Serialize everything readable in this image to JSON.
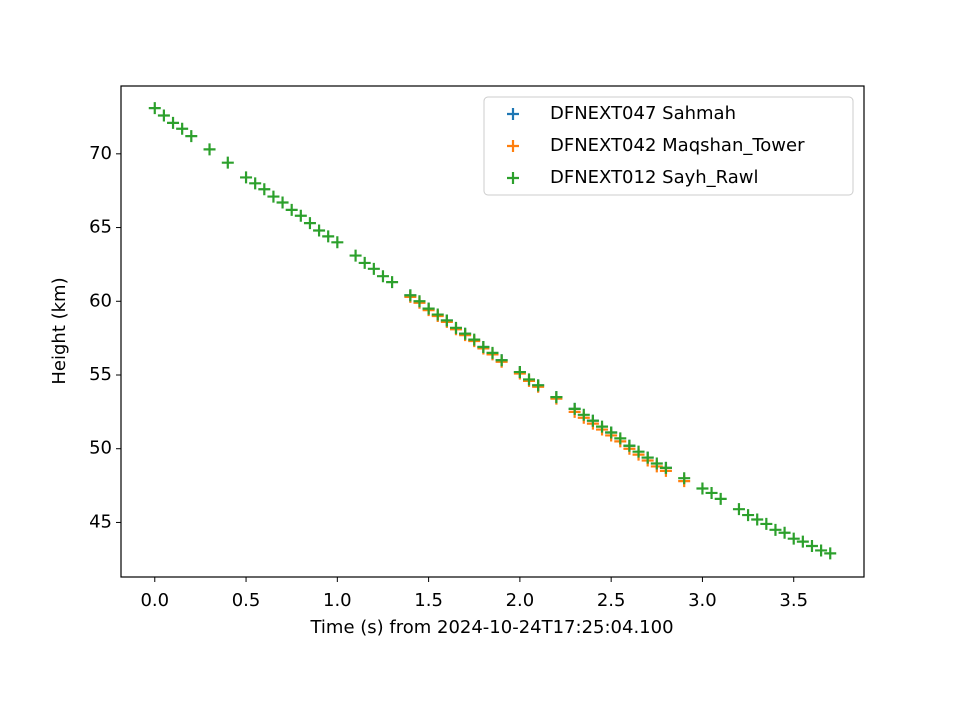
{
  "chart_data": {
    "type": "scatter",
    "x_label": "Time (s) from 2024-10-24T17:25:04.100",
    "y_label": "Height (km)",
    "xlim": [
      -0.185,
      3.885
    ],
    "ylim": [
      41.3,
      74.6
    ],
    "xticks": [
      {
        "value": 0,
        "label": "0.0"
      },
      0.5,
      {
        "value": 1,
        "label": "1.0"
      },
      1.5,
      {
        "value": 2,
        "label": "2.0"
      },
      2.5,
      {
        "value": 3,
        "label": "3.0"
      },
      3.5
    ],
    "yticks": [
      45,
      50,
      55,
      60,
      65,
      70
    ],
    "marker": "+",
    "legend": "upper right",
    "series": [
      {
        "name": "DFNEXT047 Sahmah",
        "color": "#1f77b4",
        "x": [
          1.4,
          1.5,
          1.6,
          1.7,
          1.8,
          1.9,
          2.0,
          2.1,
          2.2,
          2.3,
          2.4,
          2.5,
          2.6,
          2.7,
          2.8
        ],
        "y": [
          60.4,
          59.5,
          58.7,
          57.8,
          56.9,
          56.0,
          55.2,
          54.3,
          53.5,
          52.7,
          51.9,
          51.1,
          50.2,
          49.4,
          48.7
        ]
      },
      {
        "name": "DFNEXT042 Maqshan_Tower",
        "color": "#ff7f0e",
        "x": [
          1.4,
          1.45,
          1.5,
          1.55,
          1.6,
          1.65,
          1.7,
          1.75,
          1.8,
          1.85,
          1.9,
          2.0,
          2.05,
          2.1,
          2.2,
          2.3,
          2.35,
          2.4,
          2.45,
          2.5,
          2.55,
          2.6,
          2.65,
          2.7,
          2.75,
          2.8,
          2.9
        ],
        "y": [
          60.3,
          59.9,
          59.4,
          59.0,
          58.6,
          58.1,
          57.7,
          57.3,
          56.8,
          56.4,
          55.9,
          55.1,
          54.6,
          54.2,
          53.4,
          52.5,
          52.1,
          51.7,
          51.3,
          50.9,
          50.5,
          50.0,
          49.6,
          49.2,
          48.8,
          48.5,
          47.8
        ]
      },
      {
        "name": "DFNEXT012 Sayh_Rawl",
        "color": "#2ca02c",
        "x": [
          0.0,
          0.05,
          0.1,
          0.15,
          0.2,
          0.3,
          0.4,
          0.5,
          0.55,
          0.6,
          0.65,
          0.7,
          0.75,
          0.8,
          0.85,
          0.9,
          0.95,
          1.0,
          1.1,
          1.15,
          1.2,
          1.25,
          1.3,
          1.4,
          1.45,
          1.5,
          1.55,
          1.6,
          1.65,
          1.7,
          1.75,
          1.8,
          1.85,
          1.9,
          2.0,
          2.05,
          2.1,
          2.2,
          2.3,
          2.35,
          2.4,
          2.45,
          2.5,
          2.55,
          2.6,
          2.65,
          2.7,
          2.75,
          2.8,
          2.9,
          3.0,
          3.05,
          3.1,
          3.2,
          3.25,
          3.3,
          3.35,
          3.4,
          3.45,
          3.5,
          3.55,
          3.6,
          3.65,
          3.7
        ],
        "y": [
          73.1,
          72.6,
          72.1,
          71.7,
          71.2,
          70.3,
          69.4,
          68.4,
          68.0,
          67.6,
          67.1,
          66.7,
          66.2,
          65.8,
          65.3,
          64.8,
          64.4,
          64.0,
          63.1,
          62.6,
          62.2,
          61.7,
          61.3,
          60.4,
          60.0,
          59.5,
          59.1,
          58.7,
          58.2,
          57.8,
          57.4,
          56.9,
          56.5,
          56.0,
          55.2,
          54.7,
          54.3,
          53.5,
          52.7,
          52.3,
          51.9,
          51.5,
          51.1,
          50.7,
          50.2,
          49.8,
          49.4,
          49.0,
          48.7,
          48.0,
          47.3,
          47.0,
          46.6,
          45.9,
          45.5,
          45.2,
          44.9,
          44.5,
          44.3,
          43.9,
          43.7,
          43.4,
          43.1,
          42.9
        ]
      }
    ]
  }
}
